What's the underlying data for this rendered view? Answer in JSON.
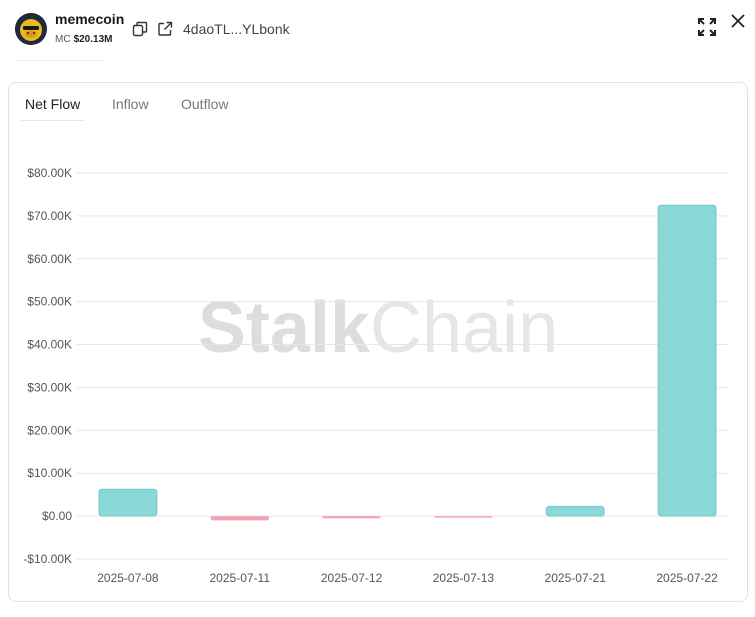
{
  "header": {
    "token_name": "memecoin",
    "mc_label": "MC",
    "mc_value": "$20.13M",
    "address": "4daoTL...YLbonk",
    "icons": {
      "copy": "copy-icon",
      "external": "external-link-icon",
      "expand": "expand-icon",
      "close": "close-icon",
      "avatar": "token-logo"
    }
  },
  "tabs": [
    {
      "label": "Net Flow",
      "active": true
    },
    {
      "label": "Inflow",
      "active": false
    },
    {
      "label": "Outflow",
      "active": false
    }
  ],
  "watermark": {
    "bold_part": "Stalk",
    "light_part": "Chain"
  },
  "colors": {
    "positive": "#8ad7d8",
    "positive_stroke": "#6cc3c4",
    "negative": "#f7a2b4",
    "grid": "#e6e6e6",
    "watermark_bold": "#dcdcdc",
    "watermark_light": "#e6e6e6"
  },
  "chart_data": {
    "type": "bar",
    "title": "",
    "xlabel": "",
    "ylabel": "",
    "categories": [
      "2025-07-08",
      "2025-07-11",
      "2025-07-12",
      "2025-07-13",
      "2025-07-21",
      "2025-07-22"
    ],
    "values": [
      6300,
      -1000,
      -500,
      -200,
      2300,
      72500
    ],
    "ylim": [
      -10000,
      80000
    ],
    "yticks": [
      -10000,
      0,
      10000,
      20000,
      30000,
      40000,
      50000,
      60000,
      70000,
      80000
    ],
    "ytick_labels": [
      "-$10.00K",
      "$0.00",
      "$10.00K",
      "$20.00K",
      "$30.00K",
      "$40.00K",
      "$50.00K",
      "$60.00K",
      "$70.00K",
      "$80.00K"
    ],
    "grid": true
  }
}
